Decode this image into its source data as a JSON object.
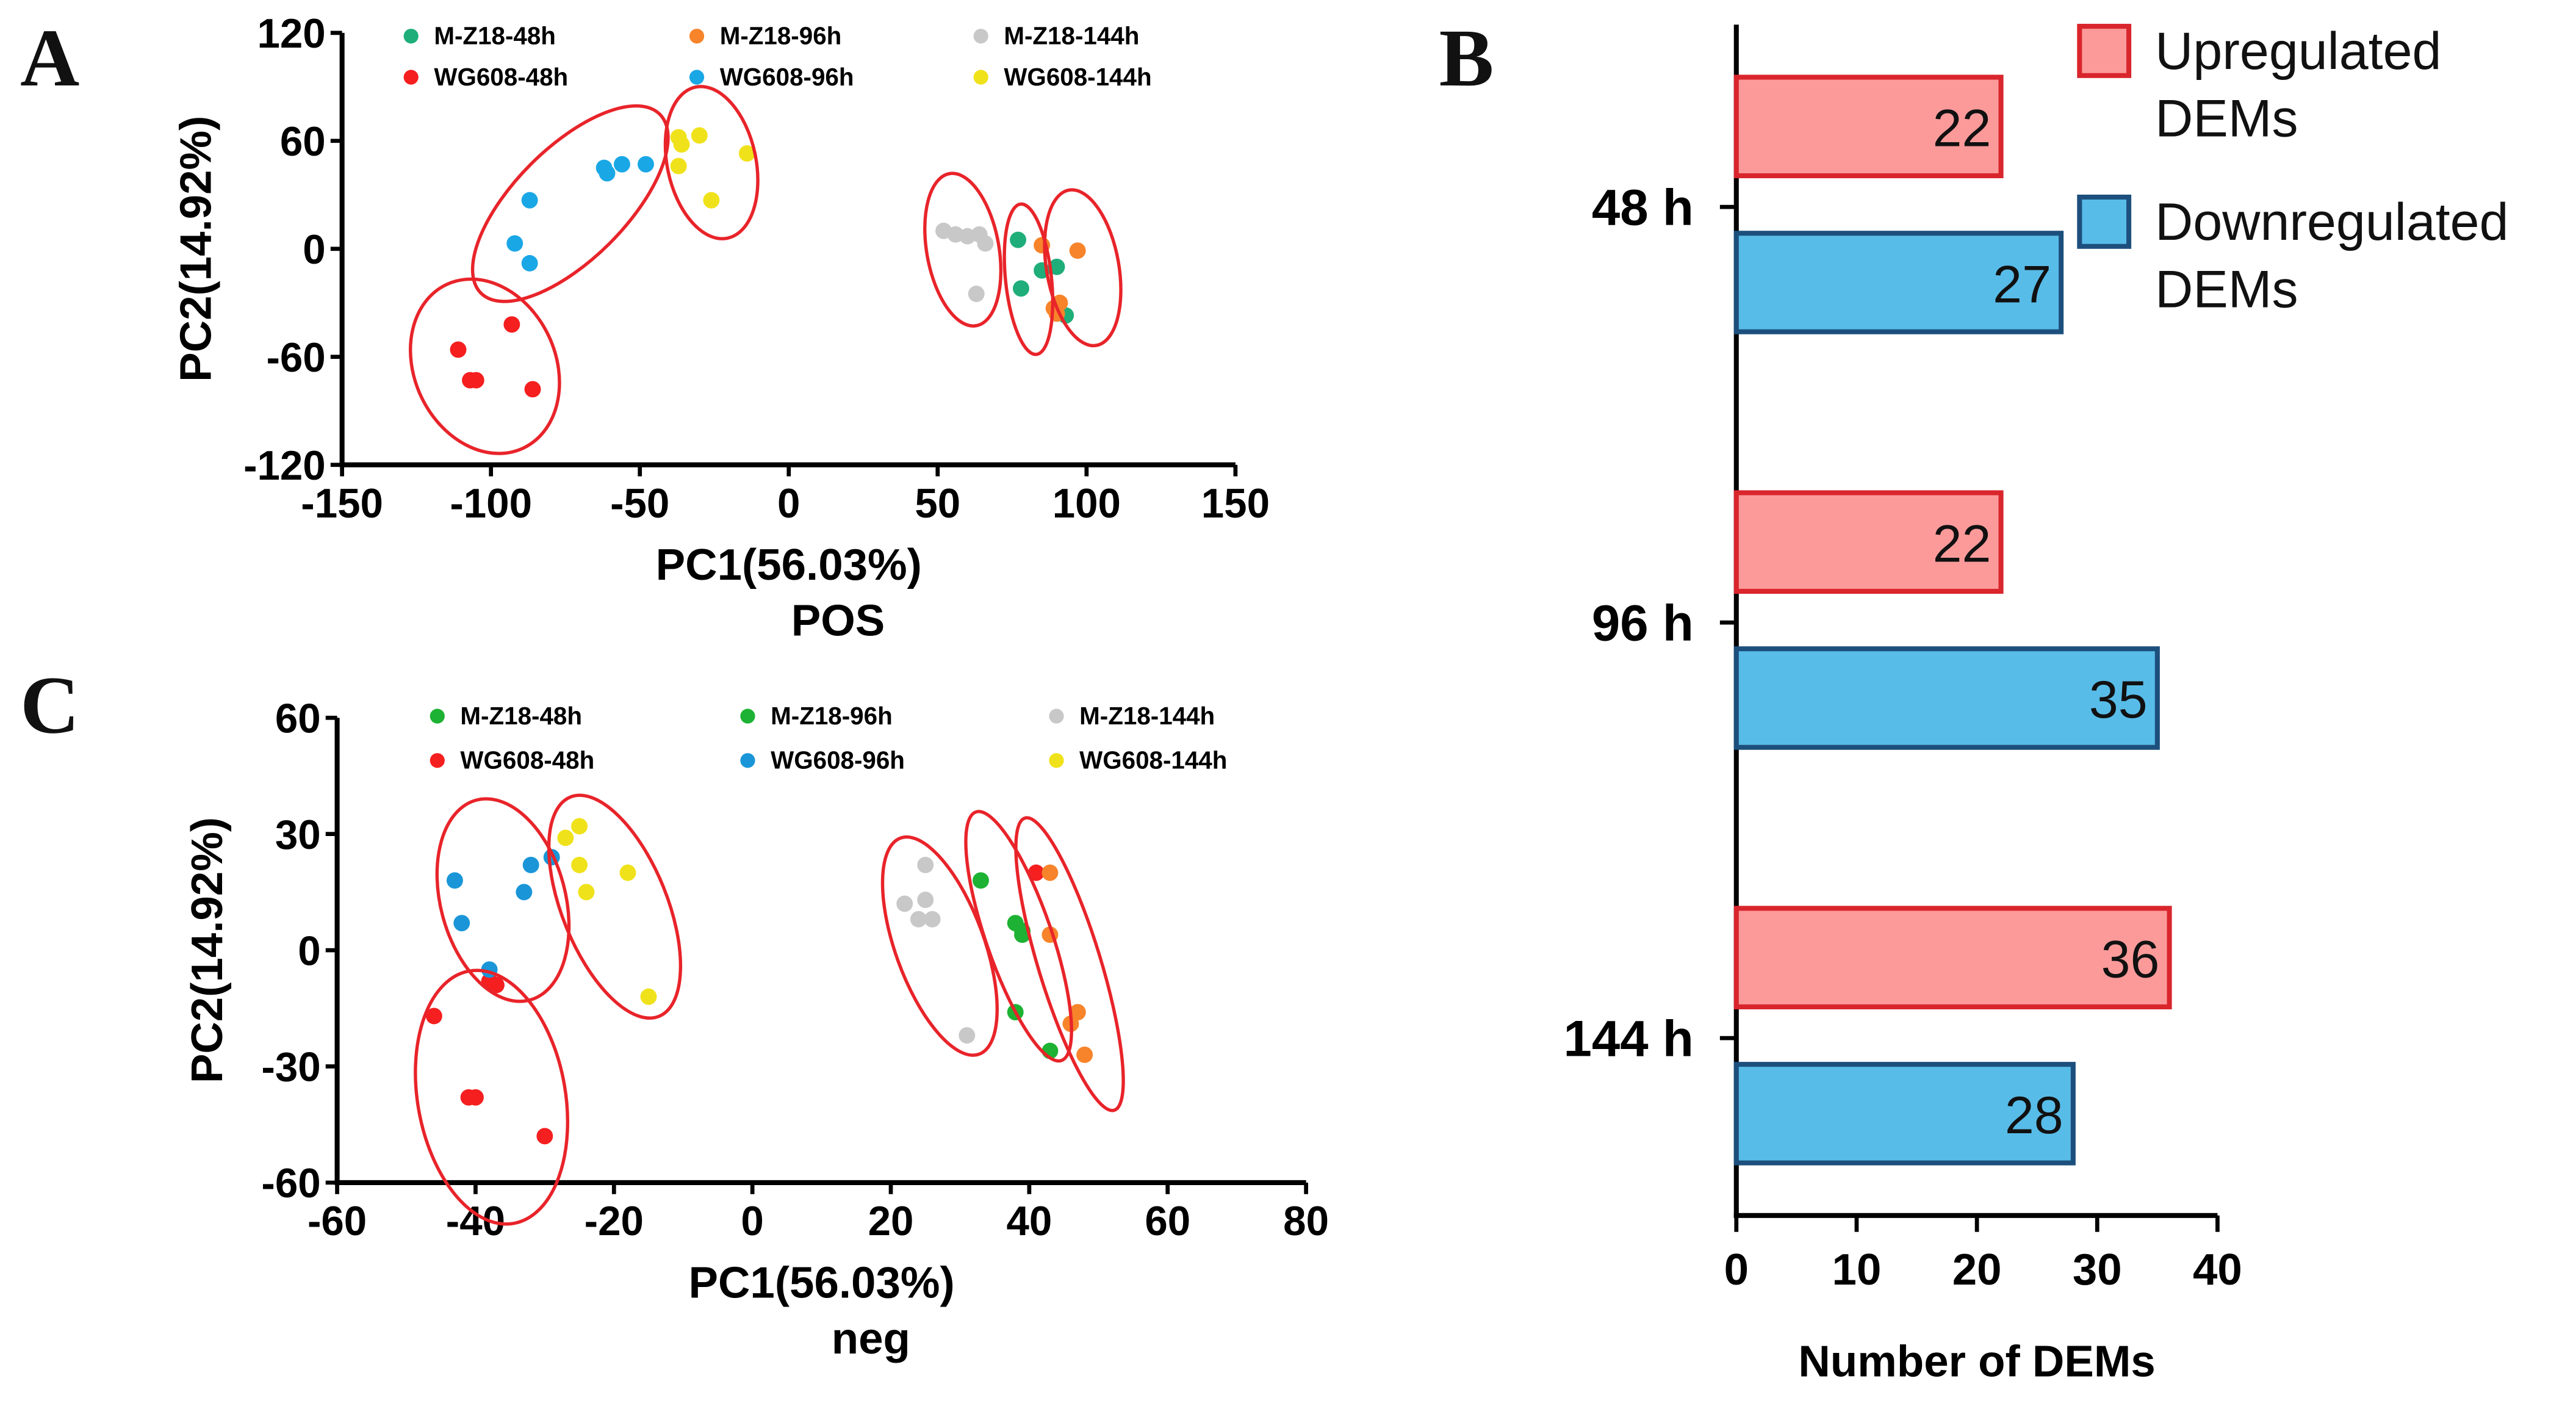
{
  "chart_data": [
    {
      "panel": "A",
      "type": "scatter",
      "xlabel": "PC1(56.03%)",
      "ylabel": "PC2(14.92%)",
      "subtitle": "POS",
      "xlim": [
        -150,
        150
      ],
      "ylim": [
        -120,
        120
      ],
      "xticks": [
        -150,
        -100,
        -50,
        0,
        50,
        100,
        150
      ],
      "yticks": [
        -120,
        -60,
        0,
        60,
        120
      ],
      "legend_position": "top",
      "series": [
        {
          "name": "M-Z18-48h",
          "color": "#1fae7a",
          "points": [
            [
              77,
              5
            ],
            [
              85,
              -12
            ],
            [
              90,
              -10
            ],
            [
              78,
              -22
            ],
            [
              93,
              -37
            ]
          ]
        },
        {
          "name": "M-Z18-96h",
          "color": "#f7842a",
          "points": [
            [
              85,
              2
            ],
            [
              97,
              -1
            ],
            [
              91,
              -30
            ],
            [
              89,
              -33
            ],
            [
              90,
              -36
            ]
          ]
        },
        {
          "name": "M-Z18-144h",
          "color": "#c8c8c8",
          "points": [
            [
              52,
              10
            ],
            [
              56,
              8
            ],
            [
              60,
              7
            ],
            [
              64,
              8
            ],
            [
              66,
              3
            ],
            [
              63,
              -25
            ]
          ]
        },
        {
          "name": "WG608-48h",
          "color": "#f51f1f",
          "points": [
            [
              -111,
              -56
            ],
            [
              -93,
              -42
            ],
            [
              -107,
              -73
            ],
            [
              -105,
              -73
            ],
            [
              -86,
              -78
            ]
          ]
        },
        {
          "name": "WG608-96h",
          "color": "#1aa7e6",
          "points": [
            [
              -92,
              3
            ],
            [
              -87,
              -8
            ],
            [
              -87,
              27
            ],
            [
              -61,
              42
            ],
            [
              -56,
              47
            ],
            [
              -48,
              47
            ],
            [
              -62,
              45
            ]
          ]
        },
        {
          "name": "WG608-144h",
          "color": "#f0e21a",
          "points": [
            [
              -37,
              62
            ],
            [
              -30,
              63
            ],
            [
              -37,
              46
            ],
            [
              -14,
              53
            ],
            [
              -26,
              27
            ],
            [
              -36,
              58
            ]
          ]
        }
      ]
    },
    {
      "panel": "C",
      "type": "scatter",
      "xlabel": "PC1(56.03%)",
      "ylabel": "PC2(14.92%)",
      "subtitle": "neg",
      "xlim": [
        -60,
        80
      ],
      "ylim": [
        -60,
        60
      ],
      "xticks": [
        -60,
        -40,
        -20,
        0,
        20,
        40,
        60,
        80
      ],
      "yticks": [
        -60,
        -30,
        0,
        30,
        60
      ],
      "legend_position": "top",
      "series": [
        {
          "name": "M-Z18-48h",
          "color": "#1db233",
          "points": [
            [
              33,
              18
            ],
            [
              38,
              7
            ],
            [
              39,
              5
            ],
            [
              39,
              4
            ],
            [
              38,
              -16
            ],
            [
              43,
              -26
            ]
          ]
        },
        {
          "name": "M-Z18-96h",
          "color": "#1db233",
          "points": []
        },
        {
          "name": "M-Z18-144h",
          "color": "#c8c8c8",
          "points": [
            [
              25,
              22
            ],
            [
              22,
              12
            ],
            [
              25,
              13
            ],
            [
              24,
              8
            ],
            [
              26,
              8
            ],
            [
              31,
              -22
            ]
          ]
        },
        {
          "name": "WG608-48h",
          "color": "#f51f1f",
          "points": [
            [
              41,
              20
            ],
            [
              -46,
              -17
            ],
            [
              -41,
              -38
            ],
            [
              -40,
              -38
            ],
            [
              -30,
              -48
            ],
            [
              -37,
              -9
            ],
            [
              -38,
              -8
            ]
          ]
        },
        {
          "name": "WG608-96h",
          "color": "#1a96d8",
          "points": [
            [
              -43,
              18
            ],
            [
              -42,
              7
            ],
            [
              -33,
              15
            ],
            [
              -32,
              22
            ],
            [
              -29,
              24
            ],
            [
              -38,
              -5
            ]
          ]
        },
        {
          "name": "WG608-144h",
          "color": "#f0e21a",
          "points": [
            [
              -27,
              29
            ],
            [
              -25,
              32
            ],
            [
              -25,
              22
            ],
            [
              -24,
              15
            ],
            [
              -18,
              20
            ],
            [
              -15,
              -12
            ]
          ]
        }
      ],
      "extra_points": {
        "color": "#f7842a",
        "points": [
          [
            43,
            20
          ],
          [
            43,
            4
          ],
          [
            47,
            -16
          ],
          [
            46,
            -19
          ],
          [
            48,
            -27
          ]
        ]
      }
    },
    {
      "panel": "B",
      "type": "bar",
      "orientation": "horizontal",
      "xlabel": "Number of DEMs",
      "xlim": [
        0,
        40
      ],
      "xticks": [
        0,
        10,
        20,
        30,
        40
      ],
      "categories": [
        "48 h",
        "96 h",
        "144 h"
      ],
      "legend_position": "top-right",
      "series": [
        {
          "name": "Upregulated DEMs",
          "legend_lines": [
            "Upregulated",
            "DEMs"
          ],
          "fill": "#fc9a9a",
          "stroke": "#d9252c",
          "values": [
            22,
            22,
            36
          ]
        },
        {
          "name": "Downregulated DEMs",
          "legend_lines": [
            "Downregulated",
            "DEMs"
          ],
          "fill": "#58bce8",
          "stroke": "#1d4f7d",
          "values": [
            27,
            35,
            28
          ]
        }
      ]
    }
  ],
  "panel_labels": {
    "a": "A",
    "b": "B",
    "c": "C"
  }
}
